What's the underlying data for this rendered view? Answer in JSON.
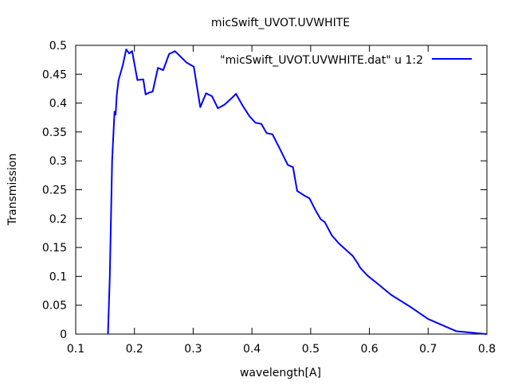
{
  "chart_data": {
    "type": "line",
    "title": "micSwift_UVOT.UVWHITE",
    "xlabel": "wavelength[A]",
    "ylabel": "Transmission",
    "xlim": [
      0.1,
      0.8
    ],
    "ylim": [
      0,
      0.5
    ],
    "xticks": [
      0.1,
      0.2,
      0.3,
      0.4,
      0.5,
      0.6,
      0.7,
      0.8
    ],
    "yticks": [
      0,
      0.05,
      0.1,
      0.15,
      0.2,
      0.25,
      0.3,
      0.35,
      0.4,
      0.45,
      0.5
    ],
    "xtick_labels": [
      "0.1",
      "0.2",
      "0.3",
      "0.4",
      "0.5",
      "0.6",
      "0.7",
      "0.8"
    ],
    "ytick_labels": [
      "0",
      "0.05",
      "0.1",
      "0.15",
      "0.2",
      "0.25",
      "0.3",
      "0.35",
      "0.4",
      "0.45",
      "0.5"
    ],
    "grid": false,
    "legend_position": "top-right",
    "series": [
      {
        "name": "\"micSwift_UVOT.UVWHITE.dat\" u 1:2",
        "color": "#0000ff",
        "x": [
          0.155,
          0.158,
          0.162,
          0.166,
          0.168,
          0.17,
          0.173,
          0.18,
          0.186,
          0.191,
          0.196,
          0.205,
          0.215,
          0.219,
          0.225,
          0.231,
          0.24,
          0.249,
          0.259,
          0.269,
          0.279,
          0.289,
          0.301,
          0.312,
          0.322,
          0.332,
          0.342,
          0.353,
          0.365,
          0.373,
          0.384,
          0.396,
          0.406,
          0.416,
          0.425,
          0.435,
          0.448,
          0.461,
          0.47,
          0.477,
          0.489,
          0.498,
          0.509,
          0.517,
          0.524,
          0.536,
          0.548,
          0.56,
          0.572,
          0.581,
          0.583,
          0.586,
          0.597,
          0.613,
          0.637,
          0.67,
          0.7,
          0.748,
          0.8
        ],
        "y": [
          0.0,
          0.1,
          0.3,
          0.385,
          0.38,
          0.415,
          0.44,
          0.465,
          0.493,
          0.486,
          0.49,
          0.44,
          0.441,
          0.415,
          0.418,
          0.42,
          0.461,
          0.457,
          0.485,
          0.49,
          0.48,
          0.47,
          0.463,
          0.393,
          0.417,
          0.412,
          0.391,
          0.397,
          0.408,
          0.416,
          0.396,
          0.377,
          0.366,
          0.364,
          0.348,
          0.346,
          0.32,
          0.293,
          0.289,
          0.248,
          0.24,
          0.235,
          0.213,
          0.199,
          0.194,
          0.171,
          0.157,
          0.146,
          0.135,
          0.121,
          0.117,
          0.113,
          0.101,
          0.088,
          0.068,
          0.047,
          0.026,
          0.005,
          0.0
        ]
      }
    ]
  }
}
